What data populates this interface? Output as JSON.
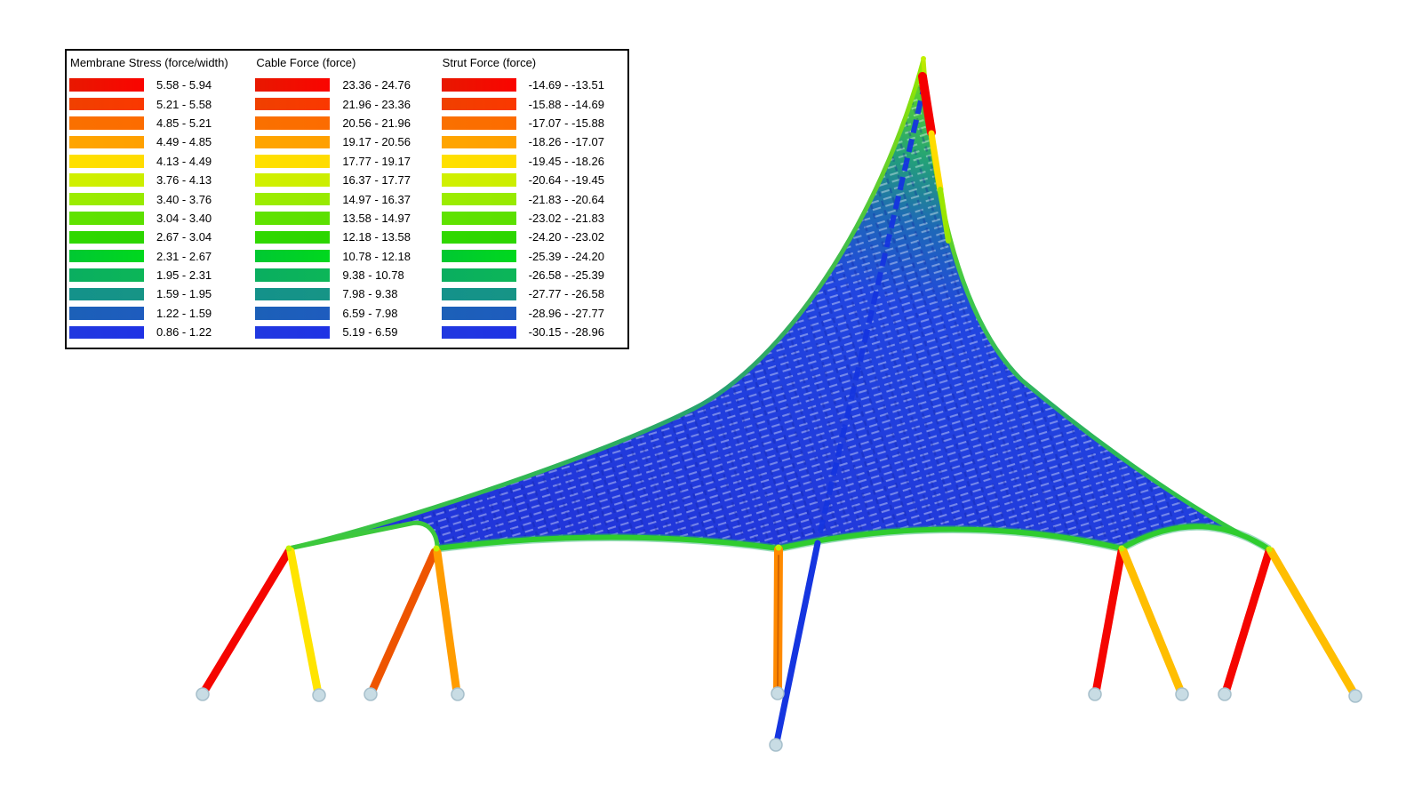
{
  "page": {
    "background": "#FFFFFF"
  },
  "legend": {
    "columns": [
      {
        "title": "Membrane Stress (force/width)",
        "ranges": [
          "5.58 - 5.94",
          "5.21 - 5.58",
          "4.85 - 5.21",
          "4.49 - 4.85",
          "4.13 - 4.49",
          "3.76 - 4.13",
          "3.40 - 3.76",
          "3.04 - 3.40",
          "2.67 - 3.04",
          "2.31 - 2.67",
          "1.95 - 2.31",
          "1.59 - 1.95",
          "1.22 - 1.59",
          "0.86 - 1.22"
        ]
      },
      {
        "title": "Cable Force (force)",
        "ranges": [
          "23.36 - 24.76",
          "21.96 - 23.36",
          "20.56 - 21.96",
          "19.17 - 20.56",
          "17.77 - 19.17",
          "16.37 - 17.77",
          "14.97 - 16.37",
          "13.58 - 14.97",
          "12.18 - 13.58",
          "10.78 - 12.18",
          "9.38 - 10.78",
          "7.98 - 9.38",
          "6.59 - 7.98",
          "5.19 - 6.59"
        ]
      },
      {
        "title": "Strut Force (force)",
        "ranges": [
          "-14.69 - -13.51",
          "-15.88 - -14.69",
          "-17.07 - -15.88",
          "-18.26 - -17.07",
          "-19.45 - -18.26",
          "-20.64 - -19.45",
          "-21.83 - -20.64",
          "-23.02 - -21.83",
          "-24.20 - -23.02",
          "-25.39 - -24.20",
          "-26.58 - -25.39",
          "-27.77 - -26.58",
          "-28.96 - -27.77",
          "-30.15 - -28.96"
        ]
      }
    ],
    "ramp": [
      [
        "#E81800",
        "#FA0400"
      ],
      [
        "#F04000",
        "#FA3800"
      ],
      [
        "#FA7000",
        "#FC6C00"
      ],
      [
        "#FFA500",
        "#FFA000"
      ],
      [
        "#FFE000",
        "#FFDC00"
      ],
      [
        "#D0F000",
        "#CCEE00"
      ],
      [
        "#9CEC00",
        "#98EA00"
      ],
      [
        "#60E200",
        "#5CE000"
      ],
      [
        "#30D800",
        "#2CD600"
      ],
      [
        "#00C832",
        "#00D81E"
      ],
      [
        "#0AAE60",
        "#0CB658"
      ],
      [
        "#14928A",
        "#169486"
      ],
      [
        "#1C60B8",
        "#1E5CBE"
      ],
      [
        "#2038E0",
        "#1F32E4"
      ]
    ]
  },
  "structure": {
    "colors": {
      "edge_cable_green": "#2FCC2F",
      "edge_band_green": "#28B070",
      "collar_green": "#3CC83C",
      "apex_red": "#F50000",
      "apex_yellow": "#FFDC00",
      "apex_lime": "#9AE600",
      "strut_red": "#F50500",
      "strut_yellow": "#FFE400",
      "strut_orange_deep": "#EE5400",
      "strut_orange": "#FF9C00",
      "strut_gold": "#FFBE00",
      "strut_center_orange": "#FF8A00",
      "strut_center_core": "#C85A00",
      "tie_cable_blue": "#1535E0",
      "anchor_fill": "#C8DCE4",
      "anchor_edge": "#A6BFCB",
      "node_dot": "#C2F000"
    }
  }
}
